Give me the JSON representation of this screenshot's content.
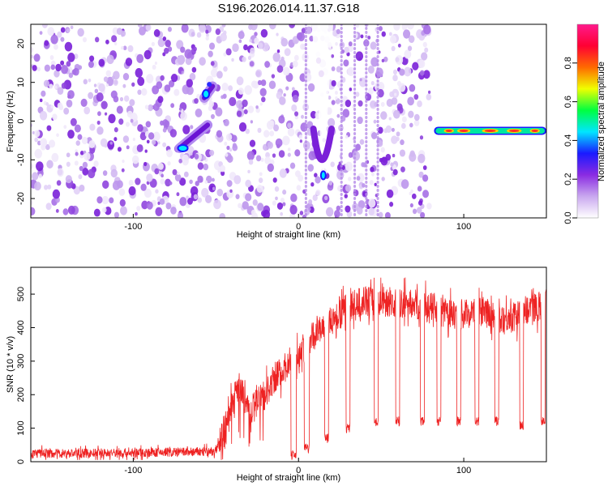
{
  "title": "S196.2026.014.11.37.G18",
  "chart_data": [
    {
      "type": "heatmap",
      "xlabel": "Height of straight line (km)",
      "ylabel": "Frequency (Hz)",
      "xlim": [
        -162,
        150
      ],
      "ylim": [
        -25,
        25
      ],
      "xticks": [
        -100,
        0,
        100
      ],
      "yticks": [
        20,
        10,
        0,
        -10,
        -20
      ],
      "colorbar": {
        "label": "Normalized spectral amplitude",
        "range": [
          0,
          1
        ],
        "ticks": [
          "0.0",
          "0.2",
          "0.4",
          "0.6",
          "0.8"
        ],
        "colors": [
          "#ffffff",
          "#c9a8ef",
          "#8a2be2",
          "#1a1aff",
          "#00e6ff",
          "#00ff40",
          "#f0ff00",
          "#ff6a00",
          "#ff0033",
          "#ff1a8c"
        ]
      },
      "features": [
        {
          "name": "noise band A",
          "x_range": [
            -162,
            -50
          ],
          "amplitude": 0.15
        },
        {
          "name": "noise band B",
          "x_range": [
            -50,
            0
          ],
          "amplitude": 0.15
        },
        {
          "name": "noise band C",
          "x_range": [
            0,
            25
          ],
          "amplitude": 0.15
        },
        {
          "name": "noise band D",
          "x_range": [
            25,
            80
          ],
          "amplitude": 0.15
        },
        {
          "name": "rising track",
          "x": [
            -72,
            -55
          ],
          "y": [
            -7,
            -1
          ],
          "amplitude": 0.35
        },
        {
          "name": "upper blob",
          "x": [
            -57,
            -52
          ],
          "y": [
            6,
            9
          ],
          "amplitude": 0.45
        },
        {
          "name": "dip feature",
          "x": [
            10,
            15,
            22
          ],
          "y": [
            -3,
            -14,
            -3
          ],
          "amplitude": 0.35
        },
        {
          "name": "stable line",
          "x": [
            82,
            150
          ],
          "y": [
            -2.5,
            -2.5
          ],
          "amplitude": 0.9
        }
      ]
    },
    {
      "type": "line",
      "xlabel": "Height of straight line (km)",
      "ylabel": "SNR (10 * v/v)",
      "xlim": [
        -162,
        150
      ],
      "ylim": [
        0,
        580
      ],
      "xticks": [
        -100,
        0,
        100
      ],
      "yticks": [
        0,
        100,
        200,
        300,
        400,
        500
      ],
      "color": "#ee2222",
      "series": [
        {
          "name": "SNR",
          "x": [
            -162,
            -120,
            -80,
            -50,
            -45,
            -40,
            -35,
            -30,
            -20,
            -15,
            -10,
            -5,
            0,
            5,
            10,
            15,
            20,
            25,
            30,
            35,
            40,
            50,
            60,
            70,
            80,
            90,
            100,
            110,
            120,
            130,
            140,
            150
          ],
          "y": [
            25,
            25,
            28,
            30,
            100,
            180,
            220,
            150,
            200,
            250,
            270,
            300,
            320,
            360,
            380,
            400,
            420,
            440,
            460,
            470,
            480,
            480,
            470,
            470,
            460,
            440,
            440,
            450,
            430,
            430,
            460,
            470
          ]
        },
        {
          "name": "SNR dips",
          "x": [
            -3,
            5,
            17,
            30,
            47,
            60,
            75,
            85,
            97,
            108,
            120,
            135,
            148
          ],
          "y": [
            20,
            40,
            70,
            100,
            120,
            120,
            120,
            120,
            120,
            120,
            120,
            110,
            120
          ]
        }
      ]
    }
  ]
}
